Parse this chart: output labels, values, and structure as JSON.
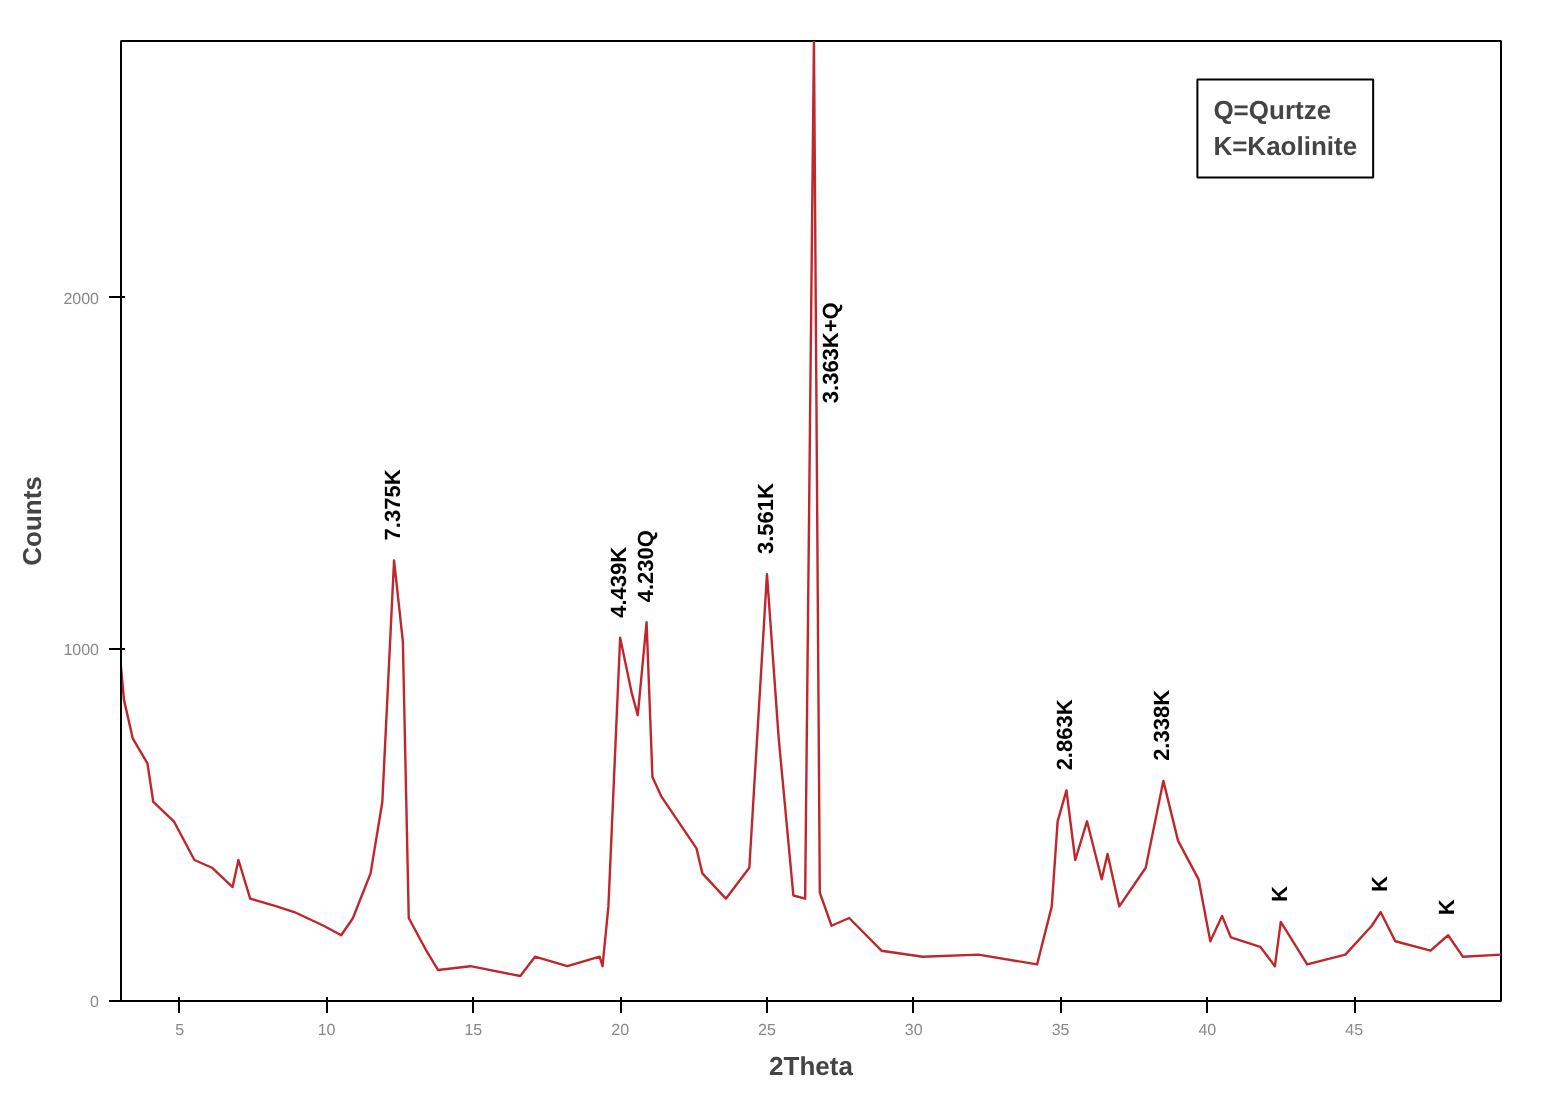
{
  "chart_data": {
    "type": "line",
    "xlabel": "2Theta",
    "ylabel": "Counts",
    "xlim": [
      3,
      50
    ],
    "ylim": [
      0,
      2730
    ],
    "xticks": [
      5,
      10,
      15,
      20,
      25,
      30,
      35,
      40,
      45
    ],
    "yticks": [
      0,
      1000,
      2000
    ],
    "grid": false,
    "series": [
      {
        "color": "#c0272d",
        "x": [
          3.0,
          3.1,
          3.4,
          3.9,
          4.1,
          4.8,
          5.5,
          6.1,
          6.8,
          7.0,
          7.4,
          8.3,
          8.9,
          9.9,
          10.5,
          10.9,
          11.5,
          11.9,
          12.3,
          12.6,
          12.8,
          13.4,
          13.8,
          14.9,
          16.6,
          17.1,
          18.2,
          19.3,
          19.4,
          19.6,
          20.0,
          20.4,
          20.6,
          20.9,
          21.1,
          21.4,
          22.6,
          22.8,
          23.6,
          24.4,
          25.0,
          25.4,
          25.9,
          26.3,
          26.6,
          26.8,
          27.2,
          27.8,
          28.9,
          30.3,
          32.2,
          34.2,
          34.7,
          34.9,
          35.2,
          35.5,
          35.9,
          36.4,
          36.6,
          37.0,
          37.9,
          38.5,
          39.0,
          39.7,
          40.1,
          40.5,
          40.8,
          41.8,
          42.3,
          42.5,
          43.4,
          44.7,
          45.6,
          45.9,
          46.4,
          47.6,
          48.2,
          48.7,
          50.0
        ],
        "values": [
          950,
          857,
          747,
          676,
          566,
          511,
          401,
          379,
          324,
          401,
          291,
          269,
          253,
          214,
          187,
          236,
          363,
          566,
          1253,
          1022,
          236,
          143,
          88,
          99,
          71,
          126,
          99,
          126,
          99,
          269,
          1033,
          874,
          813,
          1077,
          637,
          582,
          434,
          363,
          291,
          379,
          1214,
          747,
          300,
          291,
          2730,
          308,
          214,
          236,
          143,
          126,
          132,
          104,
          269,
          511,
          599,
          401,
          511,
          346,
          418,
          269,
          379,
          626,
          456,
          346,
          170,
          242,
          181,
          154,
          99,
          225,
          104,
          132,
          214,
          253,
          170,
          143,
          187,
          126,
          132
        ]
      }
    ],
    "annotations": [
      {
        "text": "7.375K",
        "x": 12.3,
        "y": 1253
      },
      {
        "text": "4.439K",
        "x": 20.0,
        "y": 1033
      },
      {
        "text": "4.230Q",
        "x": 20.9,
        "y": 1077
      },
      {
        "text": "3.561K",
        "x": 25.0,
        "y": 1214
      },
      {
        "text": "3.363K+Q",
        "x": 26.6,
        "y": 1700
      },
      {
        "text": "2.863K",
        "x": 35.2,
        "y": 599
      },
      {
        "text": "2.338K",
        "x": 38.5,
        "y": 626
      },
      {
        "text": "K",
        "x": 42.5,
        "y": 225
      },
      {
        "text": "K",
        "x": 45.9,
        "y": 253
      },
      {
        "text": "K",
        "x": 48.2,
        "y": 187
      },
      "Q=Qurtze",
      "K=Kaolinite"
    ]
  }
}
